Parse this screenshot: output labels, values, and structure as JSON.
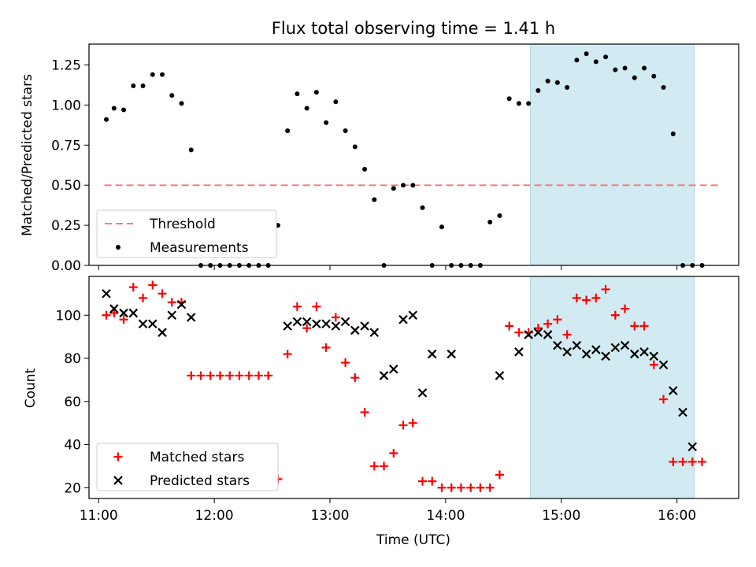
{
  "title": "Flux total observing time = 1.41 h",
  "colors": {
    "threshold": "#f08080",
    "measurement": "#000000",
    "matched": "#ff0000",
    "predicted": "#000000",
    "shade": "#add8e6"
  },
  "chart_data": [
    {
      "type": "scatter",
      "ylabel": "Matched/Predicted stars",
      "xlabel": "",
      "xlim": [
        "10:55",
        "16:32"
      ],
      "ylim": [
        0,
        1.38
      ],
      "yticks": [
        0.0,
        0.25,
        0.5,
        0.75,
        1.0,
        1.25
      ],
      "ytick_labels": [
        "0.00",
        "0.25",
        "0.50",
        "0.75",
        "1.00",
        "1.25"
      ],
      "shaded_region": {
        "x": [
          "14:44",
          "16:09"
        ]
      },
      "legend": {
        "loc": "lower left",
        "entries": [
          "Threshold",
          "Measurements"
        ]
      },
      "series": [
        {
          "name": "Threshold",
          "kind": "dashed-line",
          "x": [
            "11:03",
            "16:23"
          ],
          "y": [
            0.5,
            0.5
          ]
        },
        {
          "name": "Measurements",
          "kind": "dots",
          "x": [
            "11:04",
            "11:08",
            "11:13",
            "11:18",
            "11:23",
            "11:28",
            "11:33",
            "11:38",
            "11:43",
            "11:48",
            "11:53",
            "11:58",
            "12:03",
            "12:08",
            "12:13",
            "12:18",
            "12:23",
            "12:28",
            "12:33",
            "12:38",
            "12:43",
            "12:48",
            "12:53",
            "12:58",
            "13:03",
            "13:08",
            "13:13",
            "13:18",
            "13:23",
            "13:28",
            "13:33",
            "13:38",
            "13:43",
            "13:48",
            "13:53",
            "13:58",
            "14:03",
            "14:08",
            "14:13",
            "14:18",
            "14:23",
            "14:28",
            "14:33",
            "14:38",
            "14:43",
            "14:48",
            "14:53",
            "14:58",
            "15:03",
            "15:08",
            "15:13",
            "15:18",
            "15:23",
            "15:28",
            "15:33",
            "15:38",
            "15:43",
            "15:48",
            "15:53",
            "15:58",
            "16:03",
            "16:08",
            "16:13"
          ],
          "y": [
            0.91,
            0.98,
            0.97,
            1.12,
            1.12,
            1.19,
            1.19,
            1.06,
            1.01,
            0.72,
            0.0,
            0.0,
            0.0,
            0.0,
            0.0,
            0.0,
            0.0,
            0.0,
            0.25,
            0.84,
            1.07,
            0.98,
            1.08,
            0.89,
            1.02,
            0.84,
            0.74,
            0.6,
            0.41,
            0.0,
            0.48,
            0.5,
            0.5,
            0.36,
            0.0,
            0.24,
            0.0,
            0.0,
            0.0,
            0.0,
            0.27,
            0.31,
            1.04,
            1.01,
            1.01,
            1.09,
            1.15,
            1.14,
            1.11,
            1.28,
            1.32,
            1.27,
            1.3,
            1.22,
            1.23,
            1.17,
            1.23,
            1.18,
            1.11,
            0.82,
            0.0,
            0.0,
            0.0
          ]
        }
      ]
    },
    {
      "type": "scatter",
      "ylabel": "Count",
      "xlabel": "Time (UTC)",
      "xlim": [
        "10:55",
        "16:32"
      ],
      "ylim": [
        15,
        118
      ],
      "yticks": [
        20,
        40,
        60,
        80,
        100
      ],
      "ytick_labels": [
        "20",
        "40",
        "60",
        "80",
        "100"
      ],
      "xticks": [
        "11:00",
        "12:00",
        "13:00",
        "14:00",
        "15:00",
        "16:00"
      ],
      "xtick_labels": [
        "11:00",
        "12:00",
        "13:00",
        "14:00",
        "15:00",
        "16:00"
      ],
      "shaded_region": {
        "x": [
          "14:44",
          "16:09"
        ]
      },
      "legend": {
        "loc": "lower left",
        "entries": [
          "Matched stars",
          "Predicted stars"
        ]
      },
      "series": [
        {
          "name": "Matched stars",
          "marker": "+",
          "x": [
            "11:04",
            "11:08",
            "11:13",
            "11:18",
            "11:23",
            "11:28",
            "11:33",
            "11:38",
            "11:43",
            "11:48",
            "11:53",
            "11:58",
            "12:03",
            "12:08",
            "12:13",
            "12:18",
            "12:23",
            "12:28",
            "12:33",
            "12:38",
            "12:43",
            "12:48",
            "12:53",
            "12:58",
            "13:03",
            "13:08",
            "13:13",
            "13:18",
            "13:23",
            "13:28",
            "13:33",
            "13:38",
            "13:43",
            "13:48",
            "13:53",
            "13:58",
            "14:03",
            "14:08",
            "14:13",
            "14:18",
            "14:23",
            "14:28",
            "14:33",
            "14:38",
            "14:43",
            "14:48",
            "14:53",
            "14:58",
            "15:03",
            "15:08",
            "15:13",
            "15:18",
            "15:23",
            "15:28",
            "15:33",
            "15:38",
            "15:43",
            "15:48",
            "15:53",
            "15:58",
            "16:03",
            "16:08",
            "16:13"
          ],
          "y": [
            100,
            101,
            98,
            113,
            108,
            114,
            110,
            106,
            106,
            72,
            72,
            72,
            72,
            72,
            72,
            72,
            72,
            72,
            24,
            82,
            104,
            94,
            104,
            85,
            99,
            78,
            71,
            55,
            30,
            30,
            36,
            49,
            50,
            23,
            23,
            20,
            20,
            20,
            20,
            20,
            20,
            26,
            95,
            92,
            92,
            94,
            96,
            98,
            91,
            108,
            107,
            108,
            112,
            100,
            103,
            95,
            95,
            77,
            61,
            32,
            32,
            32,
            32
          ]
        },
        {
          "name": "Predicted stars",
          "marker": "x",
          "x": [
            "11:04",
            "11:08",
            "11:13",
            "11:18",
            "11:23",
            "11:28",
            "11:33",
            "11:38",
            "11:43",
            "11:48",
            "12:38",
            "12:43",
            "12:48",
            "12:53",
            "12:58",
            "13:03",
            "13:08",
            "13:13",
            "13:18",
            "13:23",
            "13:28",
            "13:33",
            "13:38",
            "13:43",
            "13:48",
            "13:53",
            "14:03",
            "14:28",
            "14:38",
            "14:43",
            "14:48",
            "14:53",
            "14:58",
            "15:03",
            "15:08",
            "15:13",
            "15:18",
            "15:23",
            "15:28",
            "15:33",
            "15:38",
            "15:43",
            "15:48",
            "15:53",
            "15:58",
            "16:03",
            "16:08"
          ],
          "y": [
            110,
            103,
            101,
            101,
            96,
            96,
            92,
            100,
            105,
            99,
            95,
            97,
            97,
            96,
            96,
            95,
            97,
            93,
            95,
            92,
            72,
            75,
            98,
            100,
            64,
            82,
            82,
            72,
            83,
            91,
            92,
            91,
            86,
            83,
            86,
            82,
            84,
            81,
            85,
            86,
            82,
            83,
            81,
            77,
            65,
            55,
            39
          ]
        }
      ]
    }
  ]
}
